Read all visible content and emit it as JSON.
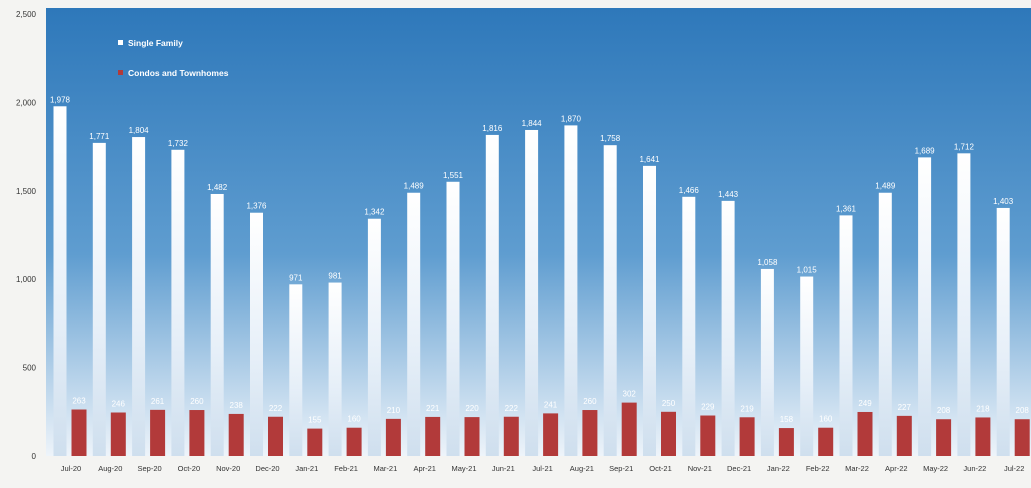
{
  "chart_data": {
    "type": "bar",
    "categories": [
      "Jul-20",
      "Aug-20",
      "Sep-20",
      "Oct-20",
      "Nov-20",
      "Dec-20",
      "Jan-21",
      "Feb-21",
      "Mar-21",
      "Apr-21",
      "May-21",
      "Jun-21",
      "Jul-21",
      "Aug-21",
      "Sep-21",
      "Oct-21",
      "Nov-21",
      "Dec-21",
      "Jan-22",
      "Feb-22",
      "Mar-22",
      "Apr-22",
      "May-22",
      "Jun-22",
      "Jul-22"
    ],
    "series": [
      {
        "name": "Single Family",
        "values": [
          1978,
          1771,
          1804,
          1732,
          1482,
          1376,
          971,
          981,
          1342,
          1489,
          1551,
          1816,
          1844,
          1870,
          1758,
          1641,
          1466,
          1443,
          1058,
          1015,
          1361,
          1489,
          1689,
          1712,
          1403
        ],
        "labels": [
          "1,978",
          "1,771",
          "1,804",
          "1,732",
          "1,482",
          "1,376",
          "971",
          "981",
          "1,342",
          "1,489",
          "1,551",
          "1,816",
          "1,844",
          "1,870",
          "1,758",
          "1,641",
          "1,466",
          "1,443",
          "1,058",
          "1,015",
          "1,361",
          "1,489",
          "1,689",
          "1,712",
          "1,403"
        ]
      },
      {
        "name": "Condos and Townhomes",
        "values": [
          263,
          246,
          261,
          260,
          238,
          222,
          155,
          160,
          210,
          221,
          220,
          222,
          241,
          260,
          302,
          250,
          229,
          219,
          158,
          160,
          249,
          227,
          208,
          218,
          208
        ],
        "labels": [
          "263",
          "246",
          "261",
          "260",
          "238",
          "222",
          "155",
          "160",
          "210",
          "221",
          "220",
          "222",
          "241",
          "260",
          "302",
          "250",
          "229",
          "219",
          "158",
          "160",
          "249",
          "227",
          "208",
          "218",
          "208"
        ]
      }
    ],
    "ylim": [
      0,
      2500
    ],
    "yticks": [
      0,
      500,
      1000,
      1500,
      2000,
      2500
    ],
    "ytick_labels": [
      "0",
      "500",
      "1,000",
      "1,500",
      "2,000",
      "2,500"
    ],
    "legend_placement": "top-left",
    "grid": false
  },
  "colors": {
    "single_family": "#f4f8fc",
    "condos_townhomes": "#b23a3a",
    "plot_top": "#2e78ba",
    "plot_bottom": "#eef4fa",
    "axis_text": "#333333",
    "label_text_light": "#ffffff"
  }
}
